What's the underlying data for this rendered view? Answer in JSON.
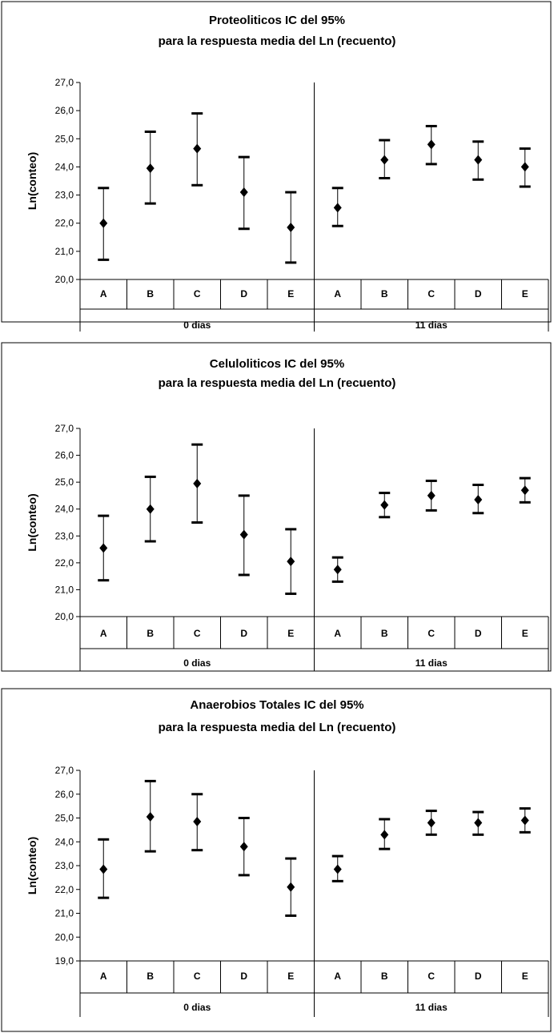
{
  "chart_data": [
    {
      "type": "scatter",
      "title": "Proteoliticos IC del 95%",
      "subtitle": "para la respuesta media del Ln (recuento)",
      "ylabel": "Ln(conteo)",
      "xlabel": "",
      "ylim": [
        20.0,
        27.0
      ],
      "yticks": [
        "20,0",
        "21,0",
        "22,0",
        "23,0",
        "24,0",
        "25,0",
        "26,0",
        "27,0"
      ],
      "categories": [
        "A",
        "B",
        "C",
        "D",
        "E",
        "A",
        "B",
        "C",
        "D",
        "E"
      ],
      "groups": [
        "0 dias",
        "11 dias"
      ],
      "mean": [
        22.0,
        23.95,
        24.65,
        23.1,
        21.85,
        22.55,
        24.25,
        24.8,
        24.25,
        24.0
      ],
      "lower": [
        20.7,
        22.7,
        23.35,
        21.8,
        20.6,
        21.9,
        23.6,
        24.1,
        23.55,
        23.3
      ],
      "upper": [
        23.25,
        25.25,
        25.9,
        24.35,
        23.1,
        23.25,
        24.95,
        25.45,
        24.9,
        24.65
      ],
      "grid": false,
      "legend": "none",
      "color": "#000000"
    },
    {
      "type": "scatter",
      "title": "Celuloliticos IC del 95%",
      "subtitle": "para la respuesta media del Ln (recuento)",
      "ylabel": "Ln(conteo)",
      "xlabel": "",
      "ylim": [
        20.0,
        27.0
      ],
      "yticks": [
        "20,0",
        "21,0",
        "22,0",
        "23,0",
        "24,0",
        "25,0",
        "26,0",
        "27,0"
      ],
      "categories": [
        "A",
        "B",
        "C",
        "D",
        "E",
        "A",
        "B",
        "C",
        "D",
        "E"
      ],
      "groups": [
        "0 dias",
        "11 dias"
      ],
      "mean": [
        22.55,
        24.0,
        24.95,
        23.05,
        22.05,
        21.75,
        24.15,
        24.5,
        24.35,
        24.7
      ],
      "lower": [
        21.35,
        22.8,
        23.5,
        21.55,
        20.85,
        21.3,
        23.7,
        23.95,
        23.85,
        24.25
      ],
      "upper": [
        23.75,
        25.2,
        26.4,
        24.5,
        23.25,
        22.2,
        24.6,
        25.05,
        24.9,
        25.15
      ],
      "grid": false,
      "legend": "none",
      "color": "#000000"
    },
    {
      "type": "scatter",
      "title": "Anaerobios Totales IC del 95%",
      "subtitle": "para la respuesta media del Ln (recuento)",
      "ylabel": "Ln(conteo)",
      "xlabel": "",
      "ylim": [
        19.0,
        27.0
      ],
      "yticks": [
        "19,0",
        "20,0",
        "21,0",
        "22,0",
        "23,0",
        "24,0",
        "25,0",
        "26,0",
        "27,0"
      ],
      "categories": [
        "A",
        "B",
        "C",
        "D",
        "E",
        "A",
        "B",
        "C",
        "D",
        "E"
      ],
      "groups": [
        "0 dias",
        "11 dias"
      ],
      "mean": [
        22.85,
        25.05,
        24.85,
        23.8,
        22.1,
        22.85,
        24.3,
        24.8,
        24.8,
        24.9
      ],
      "lower": [
        21.65,
        23.6,
        23.65,
        22.6,
        20.9,
        22.35,
        23.7,
        24.3,
        24.3,
        24.4
      ],
      "upper": [
        24.1,
        26.55,
        26.0,
        25.0,
        23.3,
        23.4,
        24.95,
        25.3,
        25.25,
        25.4
      ],
      "grid": false,
      "legend": "none",
      "color": "#000000"
    }
  ]
}
